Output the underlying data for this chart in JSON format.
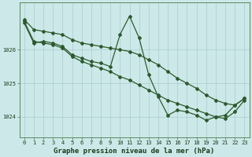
{
  "title": "Graphe pression niveau de la mer (hPa)",
  "x_labels": [
    "0",
    "1",
    "2",
    "3",
    "4",
    "5",
    "6",
    "7",
    "8",
    "9",
    "10",
    "11",
    "12",
    "13",
    "14",
    "15",
    "16",
    "17",
    "18",
    "19",
    "20",
    "21",
    "22",
    "23"
  ],
  "x_range": [
    -0.5,
    23.5
  ],
  "y_range": [
    1023.4,
    1027.4
  ],
  "y_ticks": [
    1024,
    1025,
    1026
  ],
  "series": [
    {
      "x": [
        0,
        1,
        2,
        3,
        4,
        5,
        6,
        7,
        8,
        9,
        10,
        11,
        12,
        13,
        14,
        15,
        16,
        17,
        18,
        19,
        20,
        21,
        22,
        23
      ],
      "y": [
        1026.9,
        1026.6,
        1026.55,
        1026.5,
        1026.45,
        1026.3,
        1026.2,
        1026.15,
        1026.1,
        1026.05,
        1026.0,
        1025.95,
        1025.85,
        1025.7,
        1025.55,
        1025.35,
        1025.15,
        1025.0,
        1024.85,
        1024.65,
        1024.5,
        1024.4,
        1024.35,
        1024.55
      ],
      "color": "#2d5a2d",
      "marker": "D",
      "markersize": 2.0,
      "linewidth": 0.9
    },
    {
      "x": [
        0,
        1,
        2,
        3,
        4,
        5,
        6,
        7,
        8,
        9,
        10,
        11,
        12,
        13,
        14,
        15,
        16,
        17,
        18,
        19,
        20,
        21,
        22,
        23
      ],
      "y": [
        1026.8,
        1026.2,
        1026.25,
        1026.2,
        1026.1,
        1025.85,
        1025.75,
        1025.65,
        1025.6,
        1025.5,
        1026.45,
        1027.0,
        1026.35,
        1025.25,
        1024.6,
        1024.05,
        1024.2,
        1024.15,
        1024.05,
        1023.9,
        1024.0,
        1024.05,
        1024.35,
        1024.55
      ],
      "color": "#2d5a2d",
      "marker": "D",
      "markersize": 2.0,
      "linewidth": 0.9
    },
    {
      "x": [
        0,
        1,
        2,
        3,
        4,
        5,
        6,
        7,
        8,
        9,
        10,
        11,
        12,
        13,
        14,
        15,
        16,
        17,
        18,
        19,
        20,
        21,
        22,
        23
      ],
      "y": [
        1026.85,
        1026.25,
        1026.2,
        1026.15,
        1026.05,
        1025.8,
        1025.65,
        1025.55,
        1025.45,
        1025.35,
        1025.2,
        1025.1,
        1024.95,
        1024.8,
        1024.65,
        1024.5,
        1024.4,
        1024.3,
        1024.2,
        1024.1,
        1024.0,
        1023.95,
        1024.15,
        1024.5
      ],
      "color": "#2d5a2d",
      "marker": "D",
      "markersize": 2.0,
      "linewidth": 0.9
    }
  ],
  "background_color": "#cce8e8",
  "grid_color": "#aacece",
  "label_color": "#1a3a1a",
  "title_fontsize": 6.5,
  "tick_fontsize": 5.0
}
